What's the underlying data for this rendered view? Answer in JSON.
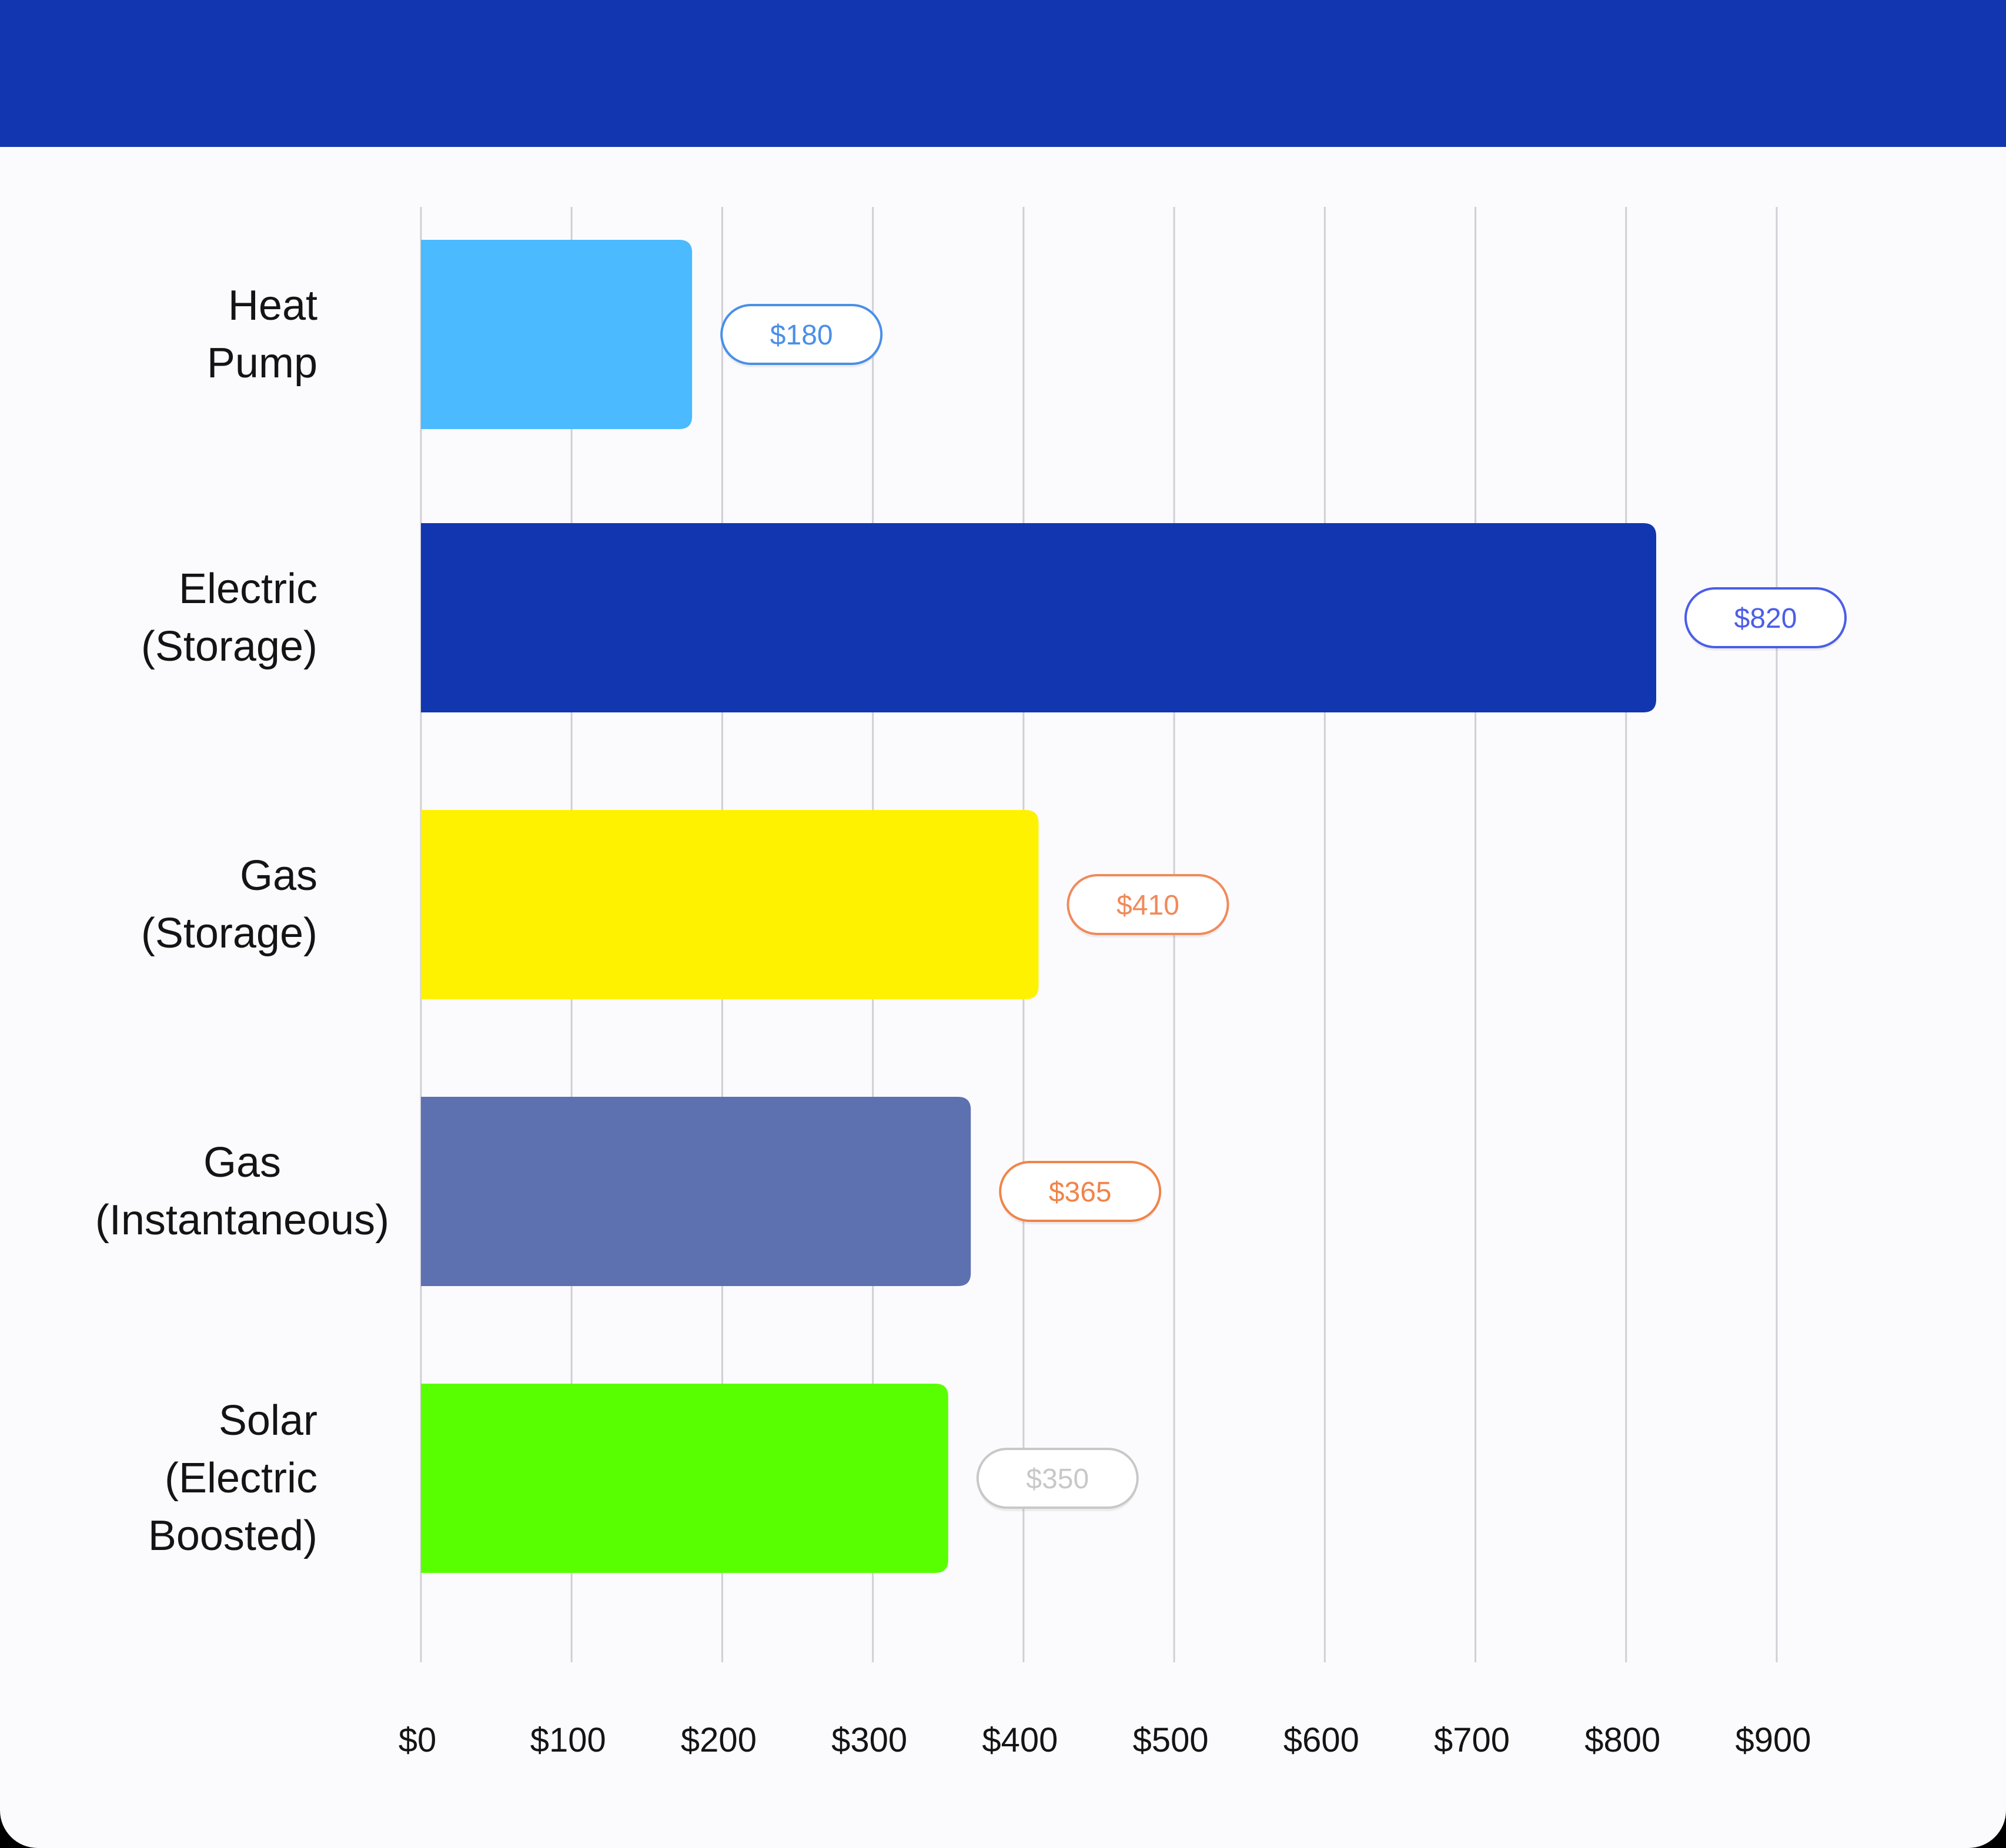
{
  "colors": {
    "header": "#1236b0",
    "background": "#fbfbfd",
    "gridline": "#cfcfd6",
    "text": "#141414"
  },
  "chart_data": {
    "type": "bar",
    "orientation": "horizontal",
    "categories": [
      [
        "Heat",
        "Pump"
      ],
      [
        "Electric",
        "(Storage)"
      ],
      [
        "Gas",
        "(Storage)"
      ],
      [
        "Gas",
        "(Instantaneous)"
      ],
      [
        "Solar",
        "(Electric",
        "Boosted)"
      ]
    ],
    "values": [
      180,
      820,
      410,
      365,
      350
    ],
    "value_labels": [
      "$180",
      "$820",
      "$410",
      "$365",
      "$350"
    ],
    "bar_colors": [
      "#4bbaff",
      "#1236b0",
      "#fff200",
      "#5d70b0",
      "#58ff00"
    ],
    "label_colors": [
      "#4a8fe8",
      "#4a5ee8",
      "#f08a5a",
      "#f0844a",
      "#c8c8c8"
    ],
    "x_ticks": [
      0,
      100,
      200,
      300,
      400,
      500,
      600,
      700,
      800,
      900
    ],
    "x_tick_labels": [
      "$0",
      "$100",
      "$200",
      "$300",
      "$400",
      "$500",
      "$600",
      "$700",
      "$800",
      "$900"
    ],
    "xlim": [
      0,
      900
    ],
    "grid": true
  }
}
